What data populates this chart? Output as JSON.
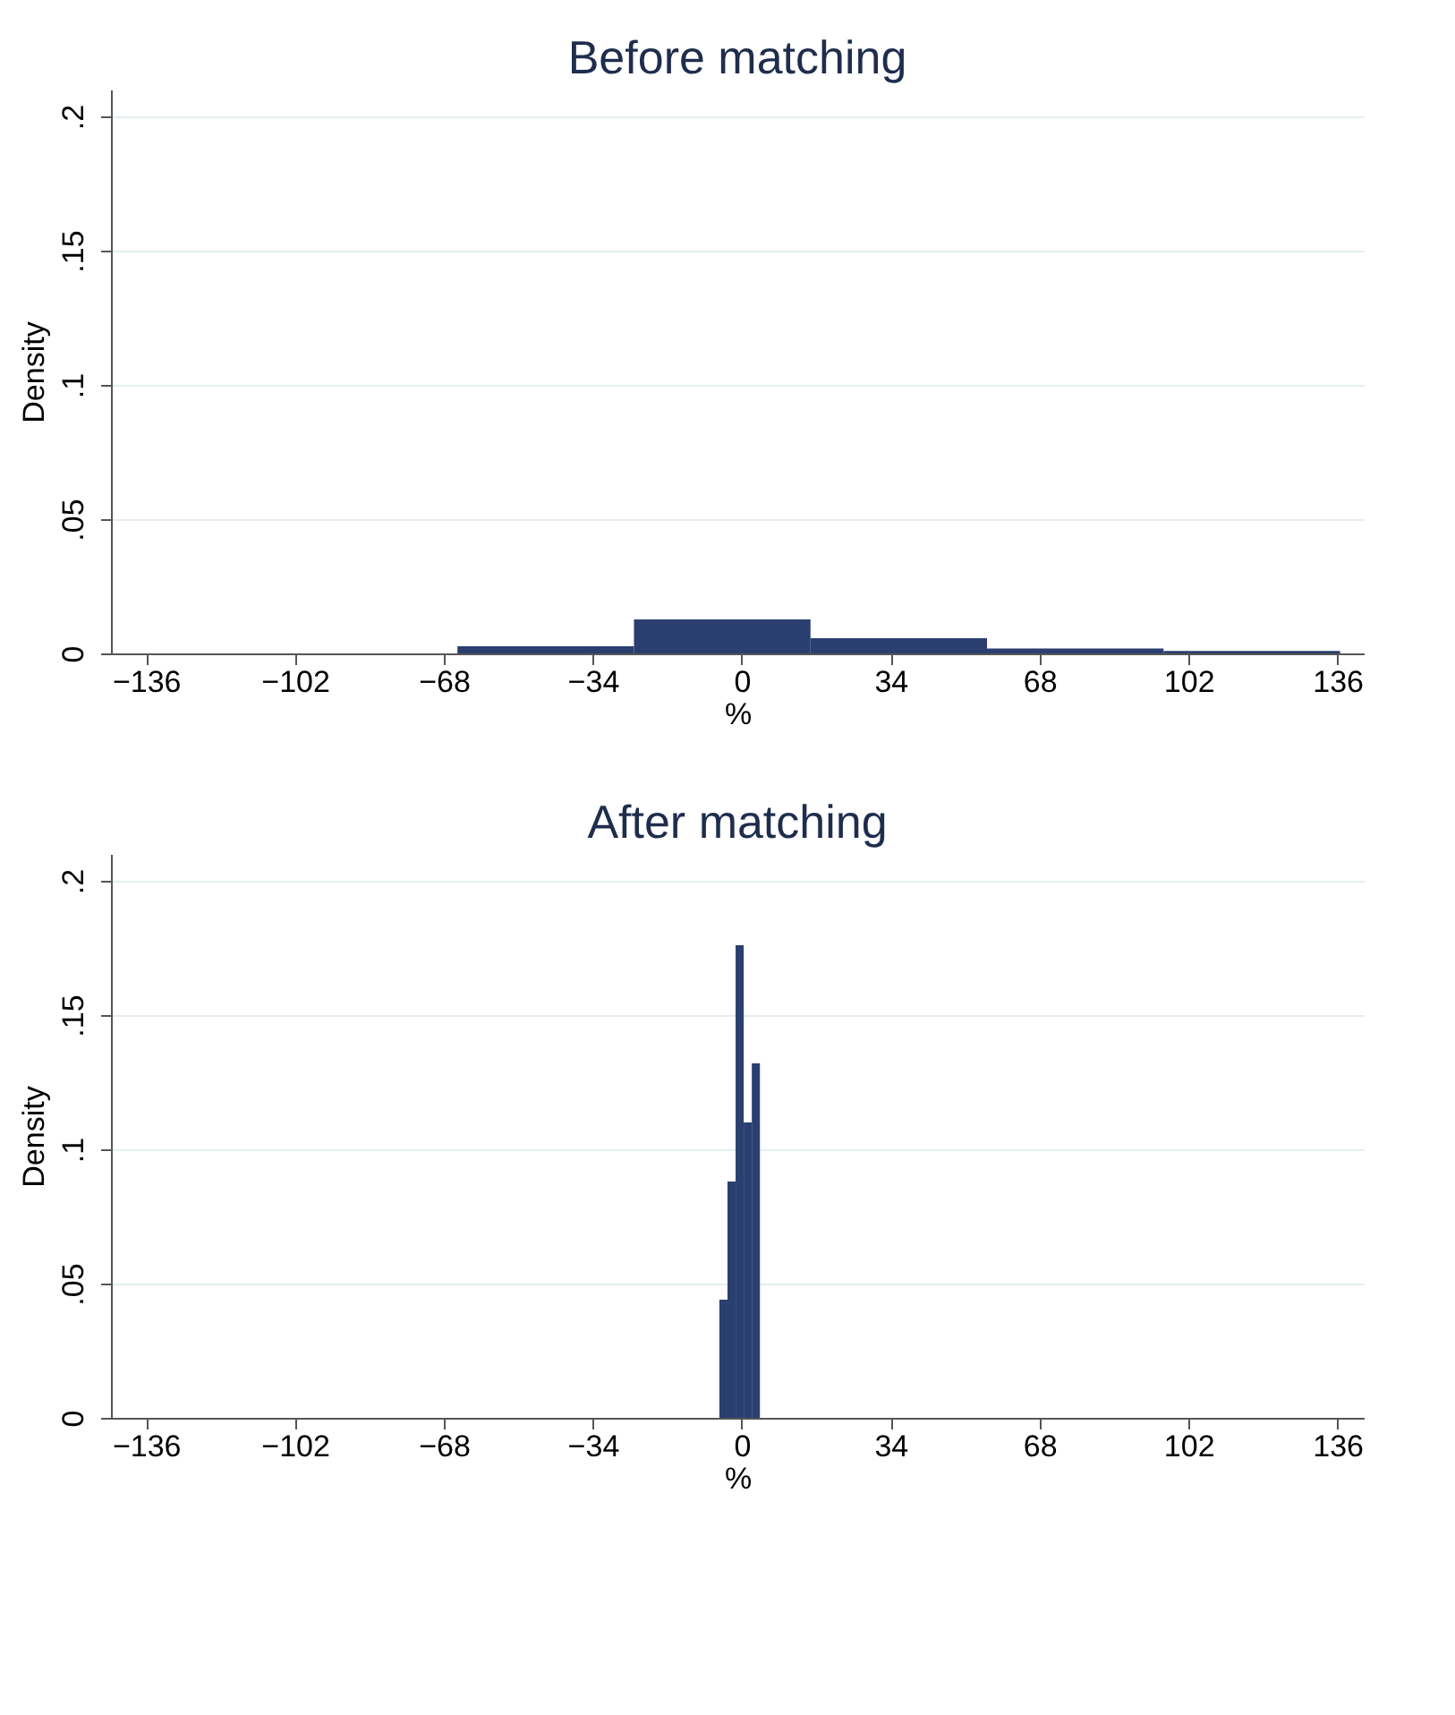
{
  "chart_data": [
    {
      "type": "histogram",
      "title": "Before matching",
      "xlabel": "%",
      "ylabel": "Density",
      "bins": [
        -64.9,
        -24.6,
        15.7,
        56,
        96.3,
        136.6
      ],
      "values": [
        0.0027,
        0.0127,
        0.0057,
        0.0018,
        0.0009
      ],
      "color": "#2a3f6f",
      "xlim": [
        -144,
        142
      ],
      "xticks": [
        -136,
        -102,
        -68,
        -34,
        0,
        34,
        68,
        102,
        136
      ],
      "ylim": [
        0,
        0.21
      ],
      "yticks": [
        {
          "value": 0,
          "label": "0"
        },
        {
          "value": 0.05,
          "label": ".05"
        },
        {
          "value": 0.1,
          "label": ".1"
        },
        {
          "value": 0.15,
          "label": ".15"
        },
        {
          "value": 0.2,
          "label": ".2"
        }
      ],
      "grid": "y"
    },
    {
      "type": "histogram",
      "title": "After matching",
      "xlabel": "%",
      "ylabel": "Density",
      "bins": [
        -5.1,
        -3.25,
        -1.4,
        0.45,
        2.3,
        4.15
      ],
      "values": [
        0.044,
        0.088,
        0.176,
        0.11,
        0.132
      ],
      "color": "#2a3f6f",
      "xlim": [
        -144,
        142
      ],
      "xticks": [
        -136,
        -102,
        -68,
        -34,
        0,
        34,
        68,
        102,
        136
      ],
      "ylim": [
        0,
        0.21
      ],
      "yticks": [
        {
          "value": 0,
          "label": "0"
        },
        {
          "value": 0.05,
          "label": ".05"
        },
        {
          "value": 0.1,
          "label": ".1"
        },
        {
          "value": 0.15,
          "label": ".15"
        },
        {
          "value": 0.2,
          "label": ".2"
        }
      ],
      "grid": "y"
    }
  ]
}
